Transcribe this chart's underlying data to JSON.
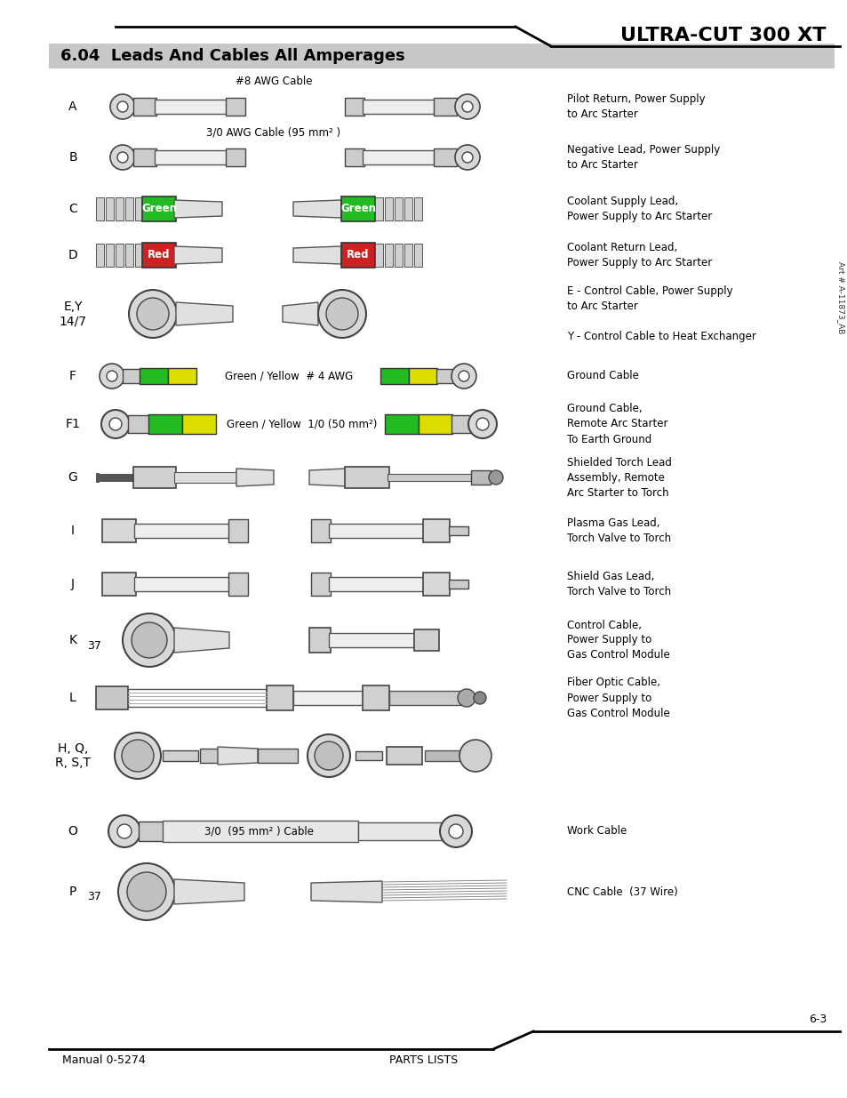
{
  "title": "ULTRA-CUT 300 XT",
  "section_title": "6.04  Leads And Cables All Amperages",
  "footer_left": "Manual 0-5274",
  "footer_center": "PARTS LISTS",
  "footer_right": "6-3",
  "art_number": "Art # A-11873_AB",
  "background_color": "#ffffff",
  "section_bg": "#c8c8c8"
}
